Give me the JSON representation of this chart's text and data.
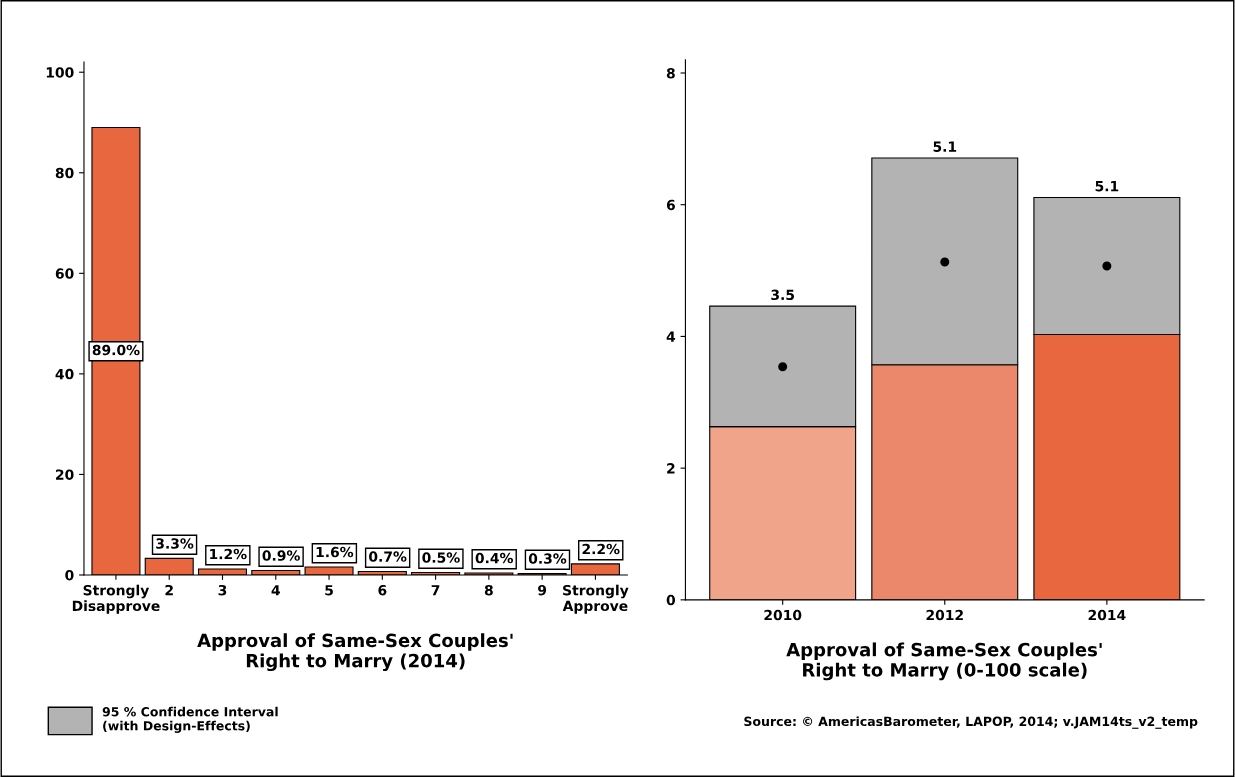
{
  "chart_data": [
    {
      "type": "bar",
      "xlabel": "Approval of Same-Sex Couples'\nRight to Marry (2014)",
      "categories": [
        "Strongly\nDisapprove",
        "2",
        "3",
        "4",
        "5",
        "6",
        "7",
        "8",
        "9",
        "Strongly\nApprove"
      ],
      "values": [
        89.0,
        3.3,
        1.2,
        0.9,
        1.6,
        0.7,
        0.5,
        0.4,
        0.3,
        2.2
      ],
      "color": "#e8673f",
      "value_labels": [
        "89.0%",
        "3.3%",
        "1.2%",
        "0.9%",
        "1.6%",
        "0.7%",
        "0.5%",
        "0.4%",
        "0.3%",
        "2.2%"
      ],
      "ylim": [
        0,
        102
      ],
      "yticks": [
        0,
        20,
        40,
        60,
        80,
        100
      ],
      "grid": false
    },
    {
      "type": "bar",
      "stacked": true,
      "xlabel": "Approval of Same-Sex Couples'\nRight to Marry (0-100 scale)",
      "categories": [
        "2010",
        "2012",
        "2014"
      ],
      "series": [
        {
          "colors": [
            "#f0a58a",
            "#eb876a",
            "#e8673f"
          ],
          "values": [
            2.63,
            3.57,
            4.03
          ]
        },
        {
          "name": "95 % Confidence Interval\n(with Design-Effects)",
          "color": "#b3b3b3",
          "values": [
            1.83,
            3.14,
            2.08
          ]
        },
        {
          "type": "scatter",
          "values": [
            3.54,
            5.13,
            5.07
          ],
          "color": "#000000",
          "marker": "circle"
        }
      ],
      "annotations": [
        {
          "text": "3.5",
          "x": "2010",
          "y": 4.46
        },
        {
          "text": "5.1",
          "x": "2012",
          "y": 6.71
        },
        {
          "text": "5.1",
          "x": "2014",
          "y": 6.11
        },
        "Source: © AmericasBarometer, LAPOP, 2014; v.JAM14ts_v2_temp"
      ],
      "ylim": [
        0,
        8.2
      ],
      "yticks": [
        0,
        2,
        4,
        6,
        8
      ],
      "grid": false,
      "legend": "bottom left"
    }
  ]
}
